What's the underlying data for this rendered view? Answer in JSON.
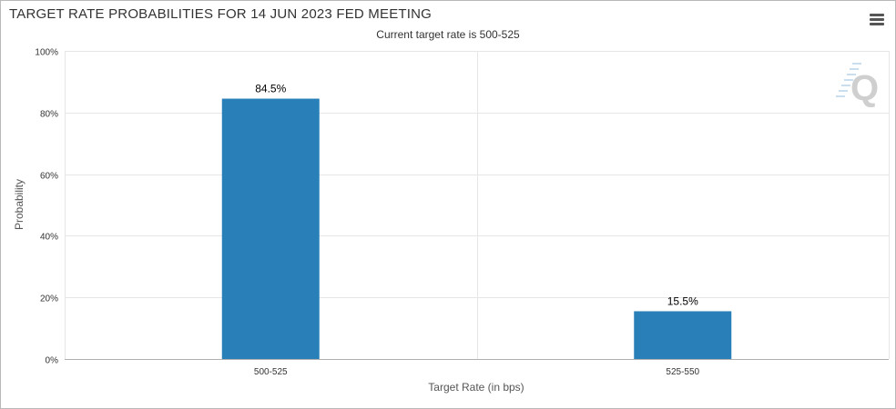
{
  "header": {
    "title": "TARGET RATE PROBABILITIES FOR 14 JUN 2023 FED MEETING",
    "subtitle": "Current target rate is 500-525"
  },
  "icons": {
    "menu": "hamburger-menu-icon",
    "watermark": "q-logo-watermark"
  },
  "colors": {
    "bar": "#2980b9",
    "grid": "#e6e6e6",
    "axis": "#b0b0b0"
  },
  "chart_data": {
    "type": "bar",
    "categories": [
      "500-525",
      "525-550"
    ],
    "values": [
      84.5,
      15.5
    ],
    "data_labels": [
      "84.5%",
      "15.5%"
    ],
    "xlabel": "Target Rate (in bps)",
    "ylabel": "Probability",
    "ylim": [
      0,
      100
    ],
    "yticks": [
      0,
      20,
      40,
      60,
      80,
      100
    ],
    "ytick_labels": [
      "0%",
      "20%",
      "40%",
      "60%",
      "80%",
      "100%"
    ],
    "grid": true,
    "legend": "none"
  }
}
